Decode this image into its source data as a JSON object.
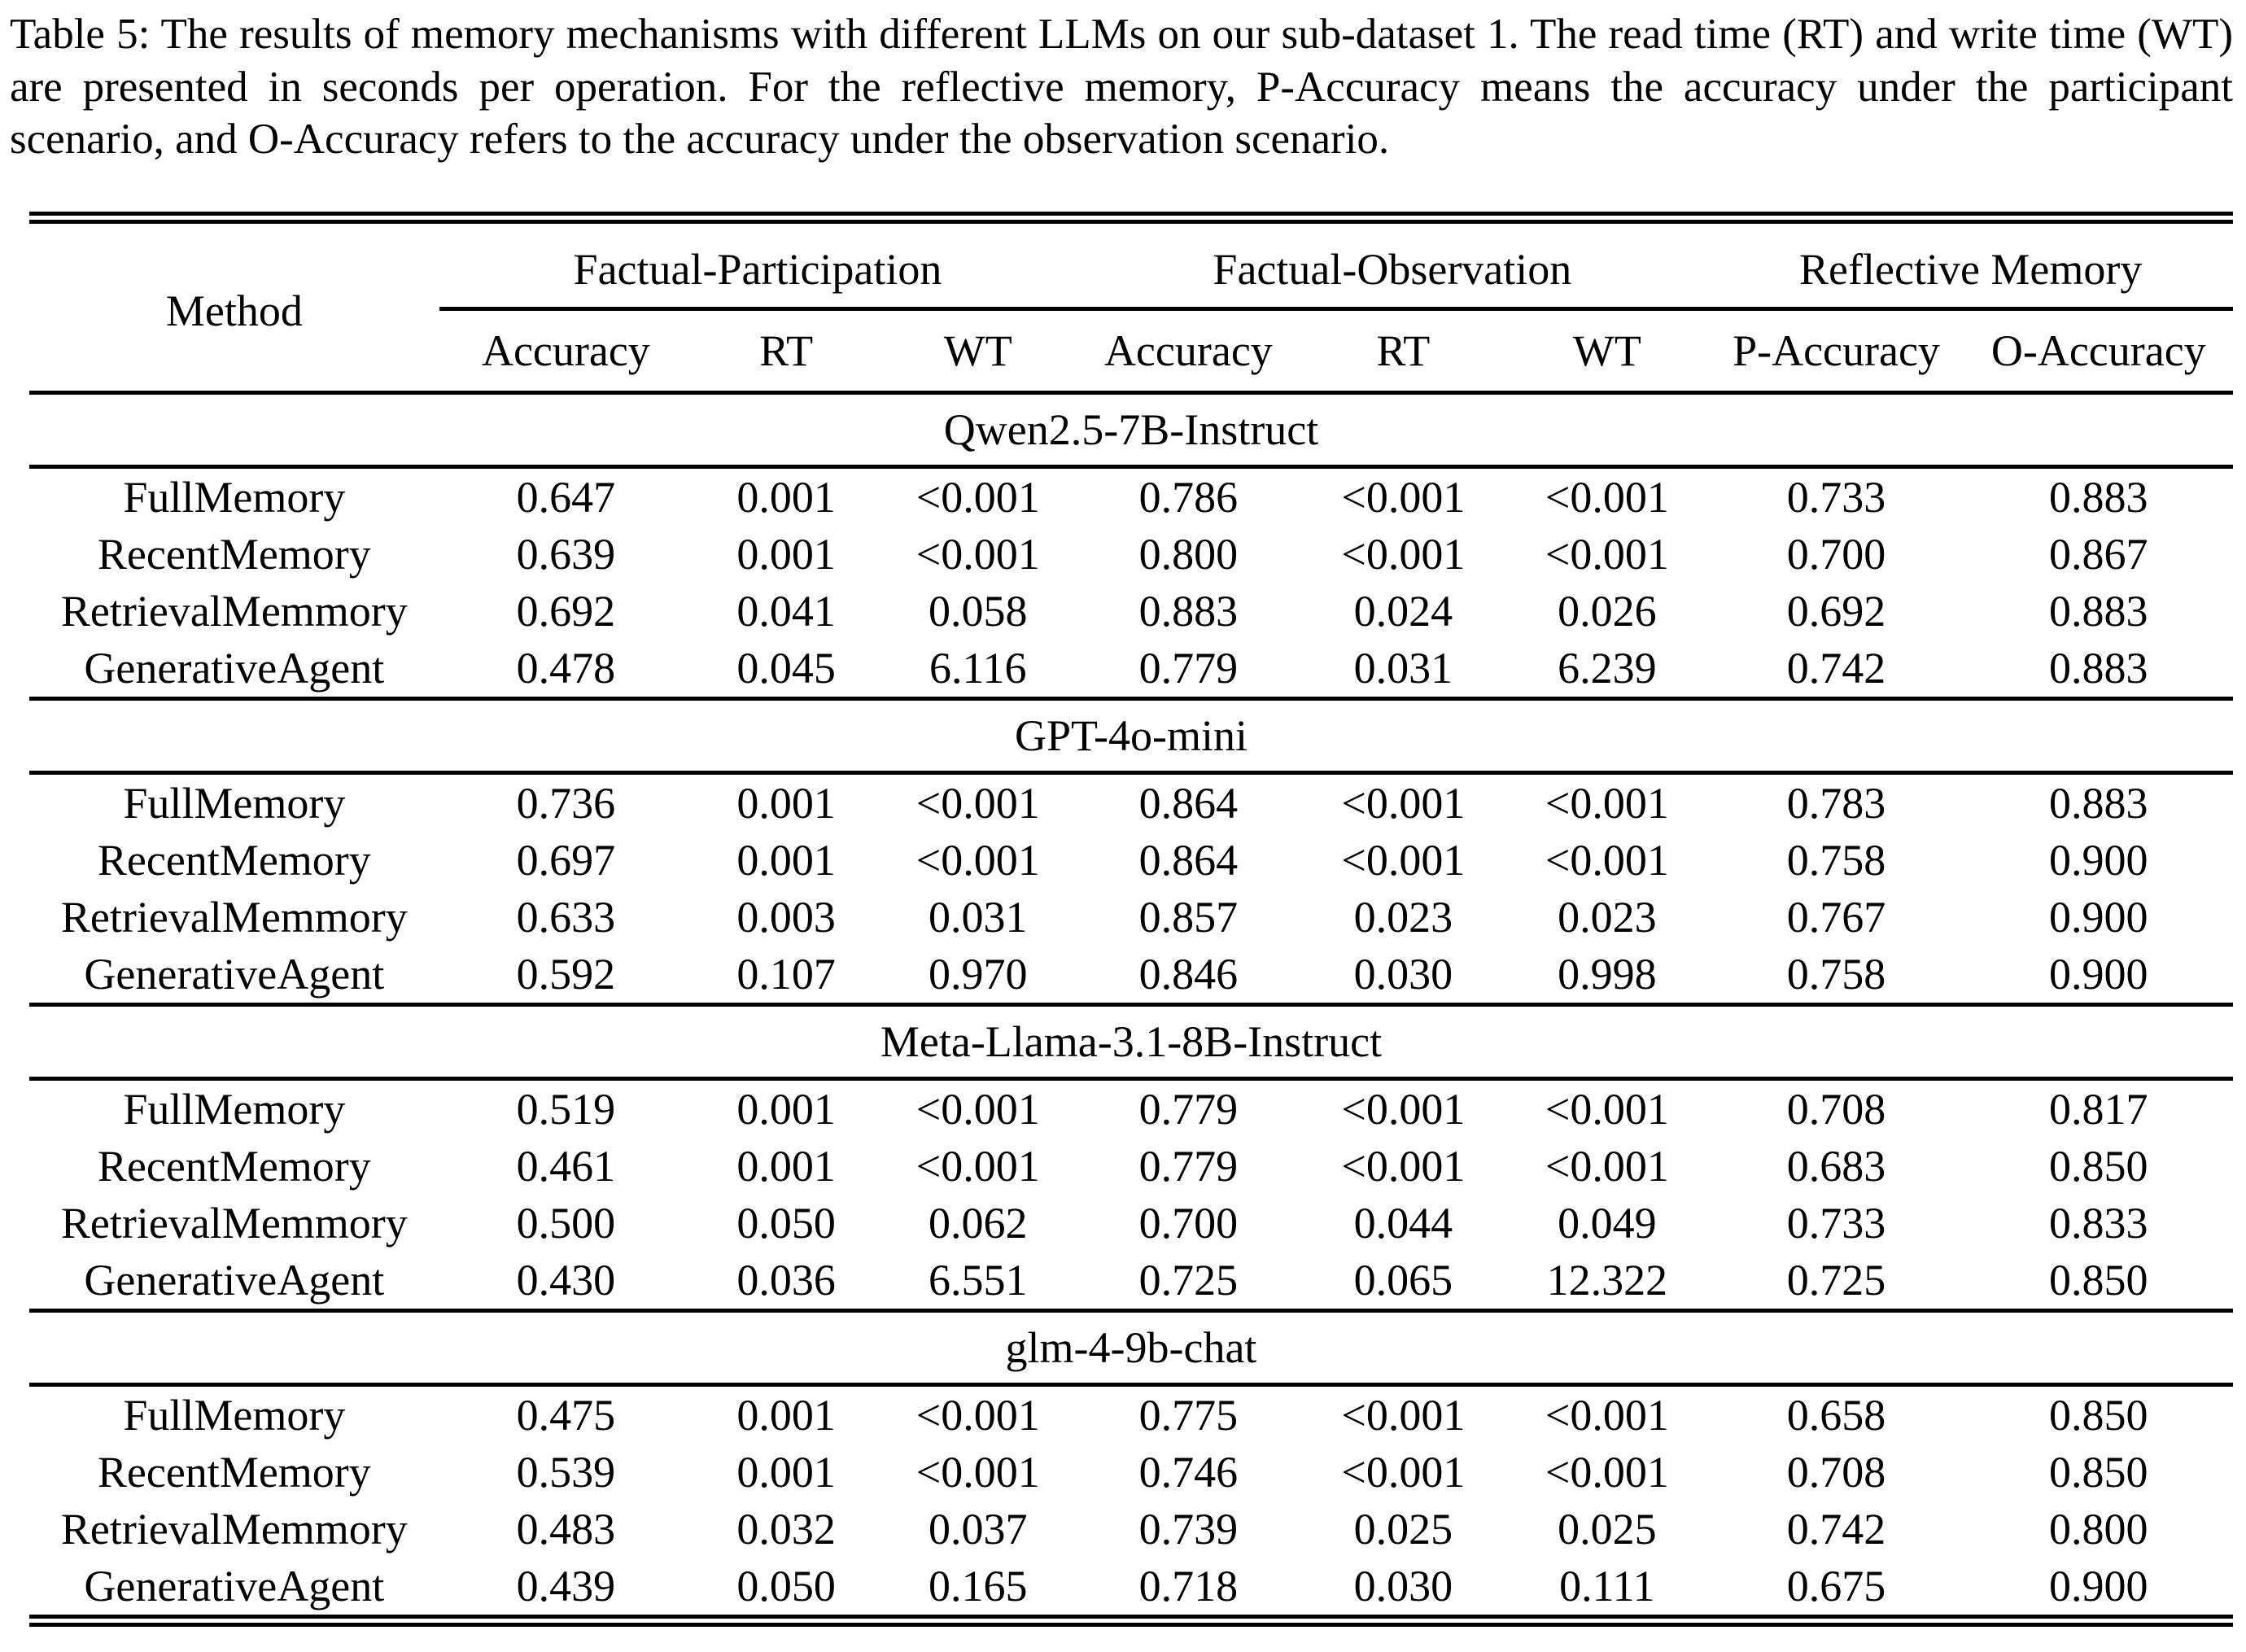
{
  "caption": "Table 5: The results of memory mechanisms with different LLMs on our sub-dataset 1. The read time (RT) and write time (WT) are presented in seconds per operation. For the reflective memory, P-Accuracy means the accuracy under the participant scenario, and O-Accuracy refers to the accuracy under the observation scenario.",
  "table": {
    "method_header": "Method",
    "groups": [
      {
        "label": "Factual-Participation",
        "cols": [
          "Accuracy",
          "RT",
          "WT"
        ]
      },
      {
        "label": "Factual-Observation",
        "cols": [
          "Accuracy",
          "RT",
          "WT"
        ]
      },
      {
        "label": "Reflective Memory",
        "cols": [
          "P-Accuracy",
          "O-Accuracy"
        ]
      }
    ],
    "sections": [
      {
        "model": "Qwen2.5-7B-Instruct",
        "rows": [
          {
            "method": "FullMemory",
            "values": [
              "0.647",
              "0.001",
              "<0.001",
              "0.786",
              "<0.001",
              "<0.001",
              "0.733",
              "0.883"
            ]
          },
          {
            "method": "RecentMemory",
            "values": [
              "0.639",
              "0.001",
              "<0.001",
              "0.800",
              "<0.001",
              "<0.001",
              "0.700",
              "0.867"
            ]
          },
          {
            "method": "RetrievalMemmory",
            "values": [
              "0.692",
              "0.041",
              "0.058",
              "0.883",
              "0.024",
              "0.026",
              "0.692",
              "0.883"
            ]
          },
          {
            "method": "GenerativeAgent",
            "values": [
              "0.478",
              "0.045",
              "6.116",
              "0.779",
              "0.031",
              "6.239",
              "0.742",
              "0.883"
            ]
          }
        ]
      },
      {
        "model": "GPT-4o-mini",
        "rows": [
          {
            "method": "FullMemory",
            "values": [
              "0.736",
              "0.001",
              "<0.001",
              "0.864",
              "<0.001",
              "<0.001",
              "0.783",
              "0.883"
            ]
          },
          {
            "method": "RecentMemory",
            "values": [
              "0.697",
              "0.001",
              "<0.001",
              "0.864",
              "<0.001",
              "<0.001",
              "0.758",
              "0.900"
            ]
          },
          {
            "method": "RetrievalMemmory",
            "values": [
              "0.633",
              "0.003",
              "0.031",
              "0.857",
              "0.023",
              "0.023",
              "0.767",
              "0.900"
            ]
          },
          {
            "method": "GenerativeAgent",
            "values": [
              "0.592",
              "0.107",
              "0.970",
              "0.846",
              "0.030",
              "0.998",
              "0.758",
              "0.900"
            ]
          }
        ]
      },
      {
        "model": "Meta-Llama-3.1-8B-Instruct",
        "rows": [
          {
            "method": "FullMemory",
            "values": [
              "0.519",
              "0.001",
              "<0.001",
              "0.779",
              "<0.001",
              "<0.001",
              "0.708",
              "0.817"
            ]
          },
          {
            "method": "RecentMemory",
            "values": [
              "0.461",
              "0.001",
              "<0.001",
              "0.779",
              "<0.001",
              "<0.001",
              "0.683",
              "0.850"
            ]
          },
          {
            "method": "RetrievalMemmory",
            "values": [
              "0.500",
              "0.050",
              "0.062",
              "0.700",
              "0.044",
              "0.049",
              "0.733",
              "0.833"
            ]
          },
          {
            "method": "GenerativeAgent",
            "values": [
              "0.430",
              "0.036",
              "6.551",
              "0.725",
              "0.065",
              "12.322",
              "0.725",
              "0.850"
            ]
          }
        ]
      },
      {
        "model": "glm-4-9b-chat",
        "rows": [
          {
            "method": "FullMemory",
            "values": [
              "0.475",
              "0.001",
              "<0.001",
              "0.775",
              "<0.001",
              "<0.001",
              "0.658",
              "0.850"
            ]
          },
          {
            "method": "RecentMemory",
            "values": [
              "0.539",
              "0.001",
              "<0.001",
              "0.746",
              "<0.001",
              "<0.001",
              "0.708",
              "0.850"
            ]
          },
          {
            "method": "RetrievalMemmory",
            "values": [
              "0.483",
              "0.032",
              "0.037",
              "0.739",
              "0.025",
              "0.025",
              "0.742",
              "0.800"
            ]
          },
          {
            "method": "GenerativeAgent",
            "values": [
              "0.439",
              "0.050",
              "0.165",
              "0.718",
              "0.030",
              "0.111",
              "0.675",
              "0.900"
            ]
          }
        ]
      }
    ]
  }
}
